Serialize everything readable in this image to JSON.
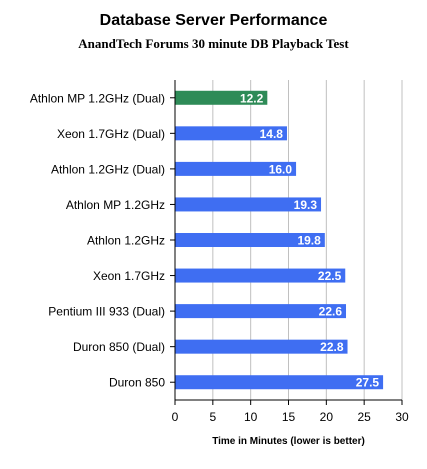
{
  "chart_data": {
    "type": "bar",
    "orientation": "horizontal",
    "title": "Database Server Performance",
    "subtitle": "AnandTech Forums 30 minute DB Playback Test",
    "xlabel": "Time in Minutes (lower is better)",
    "ylabel": "",
    "xlim": [
      0,
      30
    ],
    "xticks": [
      0,
      5,
      10,
      15,
      20,
      25,
      30
    ],
    "grid": true,
    "categories": [
      "Athlon MP 1.2GHz (Dual)",
      "Xeon 1.7GHz (Dual)",
      "Athlon 1.2GHz (Dual)",
      "Athlon MP 1.2GHz",
      "Athlon 1.2GHz",
      "Xeon 1.7GHz",
      "Pentium III 933 (Dual)",
      "Duron 850 (Dual)",
      "Duron 850"
    ],
    "values": [
      12.2,
      14.8,
      16.0,
      19.3,
      19.8,
      22.5,
      22.6,
      22.8,
      27.5
    ],
    "value_labels": [
      "12.2",
      "14.8",
      "16.0",
      "19.3",
      "19.8",
      "22.5",
      "22.6",
      "22.8",
      "27.5"
    ],
    "highlight_index": 0,
    "colors": {
      "highlight": "#2e8b57",
      "bar": "#3f6ef2",
      "grid": "#c0c0c0",
      "axis": "#000000"
    }
  }
}
